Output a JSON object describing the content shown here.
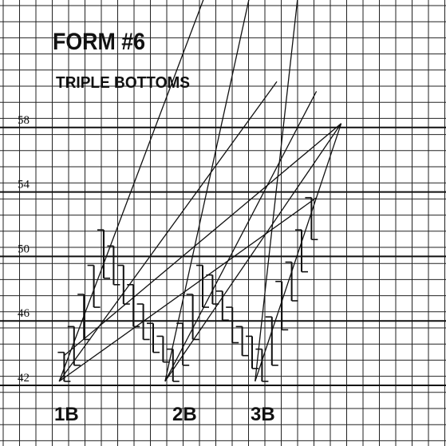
{
  "chart_data": {
    "type": "line",
    "title": "FORM #6",
    "subtitle": "TRIPLE BOTTOMS",
    "xlabel": "",
    "ylabel": "",
    "ylim": [
      40,
      64
    ],
    "yticks": [
      42,
      46,
      50,
      54,
      58
    ],
    "grid": true,
    "bottom_labels": [
      {
        "text": "1B",
        "price": 42
      },
      {
        "text": "2B",
        "price": 42
      },
      {
        "text": "3B",
        "price": 42
      }
    ],
    "price_bars": [
      {
        "x": 1,
        "high": 43.8,
        "low": 42.0
      },
      {
        "x": 2,
        "high": 45.4,
        "low": 43.0
      },
      {
        "x": 3,
        "high": 47.4,
        "low": 44.6
      },
      {
        "x": 4,
        "high": 49.2,
        "low": 46.6
      },
      {
        "x": 5,
        "high": 51.4,
        "low": 48.4
      },
      {
        "x": 6,
        "high": 50.4,
        "low": 48.0
      },
      {
        "x": 7,
        "high": 49.2,
        "low": 46.8
      },
      {
        "x": 8,
        "high": 48.0,
        "low": 45.4
      },
      {
        "x": 9,
        "high": 46.8,
        "low": 44.6
      },
      {
        "x": 10,
        "high": 45.6,
        "low": 43.8
      },
      {
        "x": 11,
        "high": 44.8,
        "low": 43.2
      },
      {
        "x": 12,
        "high": 44.0,
        "low": 42.0
      },
      {
        "x": 13,
        "high": 45.6,
        "low": 43.0
      },
      {
        "x": 14,
        "high": 47.4,
        "low": 44.6
      },
      {
        "x": 15,
        "high": 49.2,
        "low": 46.6
      },
      {
        "x": 16,
        "high": 48.6,
        "low": 46.8
      },
      {
        "x": 17,
        "high": 47.6,
        "low": 45.8
      },
      {
        "x": 18,
        "high": 46.6,
        "low": 44.4
      },
      {
        "x": 19,
        "high": 45.4,
        "low": 43.6
      },
      {
        "x": 20,
        "high": 44.8,
        "low": 42.8
      },
      {
        "x": 21,
        "high": 44.0,
        "low": 42.0
      },
      {
        "x": 22,
        "high": 46.0,
        "low": 43.0
      },
      {
        "x": 23,
        "high": 48.2,
        "low": 45.2
      },
      {
        "x": 24,
        "high": 49.4,
        "low": 47.0
      },
      {
        "x": 25,
        "high": 51.4,
        "low": 48.8
      },
      {
        "x": 26,
        "high": 53.4,
        "low": 50.8
      }
    ],
    "trendlines": [
      {
        "from": [
          0.5,
          42.0
        ],
        "to": [
          16.5,
          68.0
        ]
      },
      {
        "from": [
          0.5,
          42.0
        ],
        "to": [
          22.5,
          60.6
        ]
      },
      {
        "from": [
          0.5,
          42.0
        ],
        "to": [
          26.5,
          53.4
        ]
      },
      {
        "from": [
          11.2,
          42.0
        ],
        "to": [
          20.5,
          68.0
        ]
      },
      {
        "from": [
          11.2,
          42.0
        ],
        "to": [
          26.5,
          60.0
        ]
      },
      {
        "from": [
          11.2,
          42.0
        ],
        "to": [
          29.0,
          58.0
        ]
      },
      {
        "from": [
          20.3,
          42.0
        ],
        "to": [
          25.0,
          68.0
        ]
      },
      {
        "from": [
          20.3,
          42.0
        ],
        "to": [
          29.0,
          58.0
        ]
      },
      {
        "from": [
          1.0,
          43.6
        ],
        "to": [
          29.0,
          58.0
        ]
      }
    ]
  }
}
